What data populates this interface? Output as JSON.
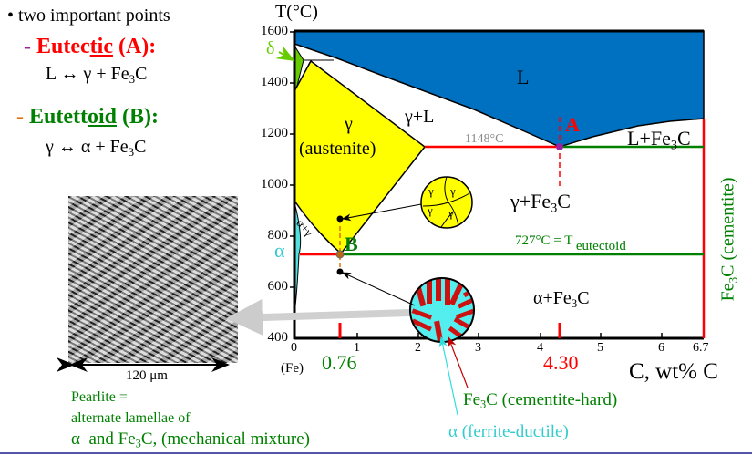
{
  "left_text": {
    "bullet": "• two important points",
    "eutectic": {
      "dash": "-",
      "pre": "Eutec",
      "underlined": "tic",
      "post": " (A):"
    },
    "eutectic_reaction": {
      "pre": "L ↔ γ + Fe",
      "sub": "3",
      "post": "C"
    },
    "eutectoid": {
      "dash": "-",
      "pre": "Eutett",
      "underlined": "oid",
      "post": " (B):"
    },
    "eutectoid_reaction": {
      "pre": "γ ↔ α + Fe",
      "sub": "3",
      "post": "C"
    }
  },
  "diagram": {
    "y_axis_title": "T(°C)",
    "y_ticks": [
      "1600",
      "1400",
      "1200",
      "1000",
      "800",
      "600",
      "400"
    ],
    "x_ticks": [
      "0",
      "1",
      "2",
      "3",
      "4",
      "5",
      "6",
      "6.7"
    ],
    "x_fe_label": "(Fe)",
    "x_axis_title": "C, wt% C",
    "marker_076": "0.76",
    "marker_430": "4.30",
    "delta": "δ",
    "alpha": "α",
    "region_L": "L",
    "region_gamma_L": "γ+L",
    "region_gamma": "γ",
    "region_austenite": "(austenite)",
    "eutectic_temp": "1148°C",
    "point_A": "A",
    "point_B": "B",
    "region_L_Fe3C": {
      "pre": "L+Fe",
      "sub": "3",
      "post": "C"
    },
    "region_gamma_Fe3C": {
      "pre": "γ+Fe",
      "sub": "3",
      "post": "C"
    },
    "eutectoid_temp": {
      "pre": "727°C = T",
      "sub": "eutectoid"
    },
    "region_alpha_gamma": "α+γ",
    "region_alpha_Fe3C": {
      "pre": "α+Fe",
      "sub": "3",
      "post": "C"
    },
    "cementite_label": {
      "pre": "Fe",
      "sub": "3",
      "post": "C (cementite)"
    },
    "grain_labels": [
      "γ",
      "γ",
      "γ",
      "γ"
    ]
  },
  "micrograph": {
    "scale": "120 μm",
    "caption_1": "Pearlite =",
    "caption_2": "alternate lamellae of",
    "caption_3": {
      "alpha": "α",
      "pre": "  and Fe",
      "sub": "3",
      "post": "C, (mechanical mixture)"
    }
  },
  "callouts": {
    "cementite": {
      "pre": "Fe",
      "sub": "3",
      "post": "C (cementite-hard)"
    },
    "ferrite": "α (ferrite-ductile)"
  },
  "colors": {
    "liquid": "#0070c0",
    "austenite": "#ffff00",
    "red": "#ff0000",
    "green": "#008000",
    "cyan": "#33cccc",
    "delta": "#66cc00"
  }
}
